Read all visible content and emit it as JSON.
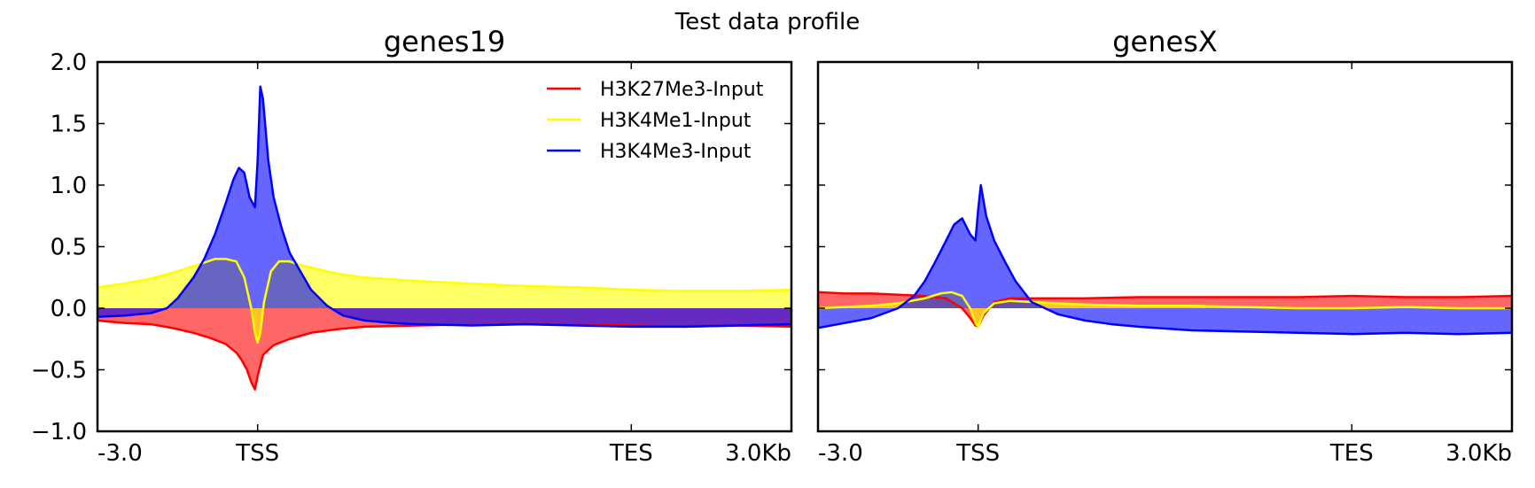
{
  "title": "Test data profile",
  "chart_data": [
    {
      "type": "area",
      "title": "genes19",
      "xticks": [
        "-3.0",
        "TSS",
        "TES",
        "3.0Kb"
      ],
      "xrange": [
        -3.0,
        10.0
      ],
      "ylim": [
        -1.0,
        2.0
      ],
      "yticks": [
        -1.0,
        -0.5,
        0.0,
        0.5,
        1.0,
        1.5,
        2.0
      ],
      "ytick_labels": [
        "−1.0",
        "−0.5",
        "0.0",
        "0.5",
        "1.0",
        "1.5",
        "2.0"
      ],
      "show_yticklabels": true,
      "legend": "top-right",
      "series": [
        {
          "name": "H3K27Me3-Input",
          "color": "#ff0000",
          "x": [
            -3.0,
            -2.5,
            -2.0,
            -1.6,
            -1.2,
            -0.9,
            -0.6,
            -0.4,
            -0.3,
            -0.2,
            -0.12,
            -0.05,
            0.0,
            0.1,
            0.3,
            0.6,
            1.0,
            1.5,
            2.0,
            3.0,
            4.0,
            5.0,
            6.0,
            7.0,
            8.0,
            9.0,
            10.0
          ],
          "values": [
            -0.1,
            -0.12,
            -0.13,
            -0.16,
            -0.2,
            -0.24,
            -0.29,
            -0.36,
            -0.42,
            -0.5,
            -0.6,
            -0.66,
            -0.55,
            -0.38,
            -0.3,
            -0.25,
            -0.2,
            -0.17,
            -0.15,
            -0.14,
            -0.13,
            -0.13,
            -0.13,
            -0.14,
            -0.15,
            -0.14,
            -0.15
          ]
        },
        {
          "name": "H3K4Me1-Input",
          "color": "#ffff00",
          "x": [
            -3.0,
            -2.5,
            -2.0,
            -1.5,
            -1.0,
            -0.8,
            -0.6,
            -0.4,
            -0.25,
            -0.12,
            -0.05,
            0.0,
            0.05,
            0.12,
            0.25,
            0.4,
            0.6,
            0.8,
            1.0,
            1.5,
            2.0,
            3.0,
            4.0,
            5.0,
            6.0,
            7.0,
            8.0,
            9.0,
            10.0
          ],
          "values": [
            0.17,
            0.2,
            0.24,
            0.3,
            0.37,
            0.4,
            0.4,
            0.38,
            0.25,
            0.0,
            -0.2,
            -0.28,
            -0.2,
            0.05,
            0.3,
            0.38,
            0.38,
            0.35,
            0.33,
            0.28,
            0.25,
            0.22,
            0.2,
            0.18,
            0.17,
            0.15,
            0.14,
            0.14,
            0.15
          ]
        },
        {
          "name": "H3K4Me3-Input",
          "color": "#0000ff",
          "x": [
            -3.0,
            -2.5,
            -2.0,
            -1.7,
            -1.5,
            -1.2,
            -1.0,
            -0.8,
            -0.6,
            -0.45,
            -0.35,
            -0.25,
            -0.15,
            -0.05,
            0.0,
            0.05,
            0.1,
            0.2,
            0.3,
            0.45,
            0.6,
            0.8,
            1.0,
            1.3,
            1.6,
            2.0,
            2.5,
            3.0,
            4.0,
            5.0,
            6.0,
            7.0,
            8.0,
            9.0,
            10.0
          ],
          "values": [
            -0.07,
            -0.06,
            -0.04,
            0.0,
            0.08,
            0.25,
            0.4,
            0.6,
            0.85,
            1.05,
            1.14,
            1.1,
            0.9,
            0.82,
            1.2,
            1.8,
            1.7,
            1.2,
            0.9,
            0.65,
            0.45,
            0.3,
            0.15,
            0.02,
            -0.06,
            -0.1,
            -0.12,
            -0.13,
            -0.14,
            -0.13,
            -0.14,
            -0.15,
            -0.15,
            -0.14,
            -0.13
          ]
        }
      ]
    },
    {
      "type": "area",
      "title": "genesX",
      "xticks": [
        "-3.0",
        "TSS",
        "TES",
        "3.0Kb"
      ],
      "xrange": [
        -3.0,
        10.0
      ],
      "ylim": [
        -1.0,
        2.0
      ],
      "yticks": [
        -1.0,
        -0.5,
        0.0,
        0.5,
        1.0,
        1.5,
        2.0
      ],
      "ytick_labels": [
        "−1.0",
        "−0.5",
        "0.0",
        "0.5",
        "1.0",
        "1.5",
        "2.0"
      ],
      "show_yticklabels": false,
      "legend": "",
      "series": [
        {
          "name": "H3K27Me3-Input",
          "color": "#ff0000",
          "x": [
            -3.0,
            -2.5,
            -2.0,
            -1.5,
            -1.0,
            -0.6,
            -0.3,
            -0.15,
            -0.05,
            0.0,
            0.1,
            0.3,
            0.6,
            1.0,
            1.5,
            2.0,
            3.0,
            4.0,
            5.0,
            6.0,
            7.0,
            8.0,
            9.0,
            10.0
          ],
          "values": [
            0.13,
            0.12,
            0.12,
            0.11,
            0.1,
            0.08,
            0.0,
            -0.08,
            -0.14,
            -0.15,
            -0.06,
            0.05,
            0.08,
            0.08,
            0.08,
            0.08,
            0.09,
            0.09,
            0.09,
            0.09,
            0.1,
            0.09,
            0.09,
            0.1
          ]
        },
        {
          "name": "H3K4Me1-Input",
          "color": "#ffff00",
          "x": [
            -3.0,
            -2.5,
            -2.0,
            -1.5,
            -1.0,
            -0.7,
            -0.5,
            -0.3,
            -0.15,
            -0.05,
            0.0,
            0.1,
            0.3,
            0.6,
            1.0,
            1.5,
            2.0,
            3.0,
            4.0,
            5.0,
            6.0,
            7.0,
            8.0,
            9.0,
            10.0
          ],
          "values": [
            0.0,
            0.01,
            0.02,
            0.04,
            0.08,
            0.12,
            0.13,
            0.1,
            0.0,
            -0.12,
            -0.15,
            -0.04,
            0.04,
            0.06,
            0.05,
            0.04,
            0.03,
            0.02,
            0.02,
            0.01,
            0.0,
            0.0,
            0.01,
            0.0,
            0.0
          ]
        },
        {
          "name": "H3K4Me3-Input",
          "color": "#0000ff",
          "x": [
            -3.0,
            -2.5,
            -2.0,
            -1.5,
            -1.2,
            -1.0,
            -0.8,
            -0.6,
            -0.45,
            -0.3,
            -0.15,
            -0.05,
            0.0,
            0.05,
            0.15,
            0.3,
            0.5,
            0.7,
            1.0,
            1.5,
            2.0,
            2.5,
            3.0,
            4.0,
            5.0,
            6.0,
            7.0,
            8.0,
            9.0,
            10.0
          ],
          "values": [
            -0.16,
            -0.12,
            -0.08,
            0.0,
            0.1,
            0.22,
            0.38,
            0.55,
            0.68,
            0.73,
            0.6,
            0.55,
            0.8,
            1.0,
            0.75,
            0.55,
            0.38,
            0.22,
            0.05,
            -0.05,
            -0.1,
            -0.13,
            -0.15,
            -0.18,
            -0.19,
            -0.2,
            -0.21,
            -0.2,
            -0.21,
            -0.2
          ]
        }
      ]
    }
  ]
}
